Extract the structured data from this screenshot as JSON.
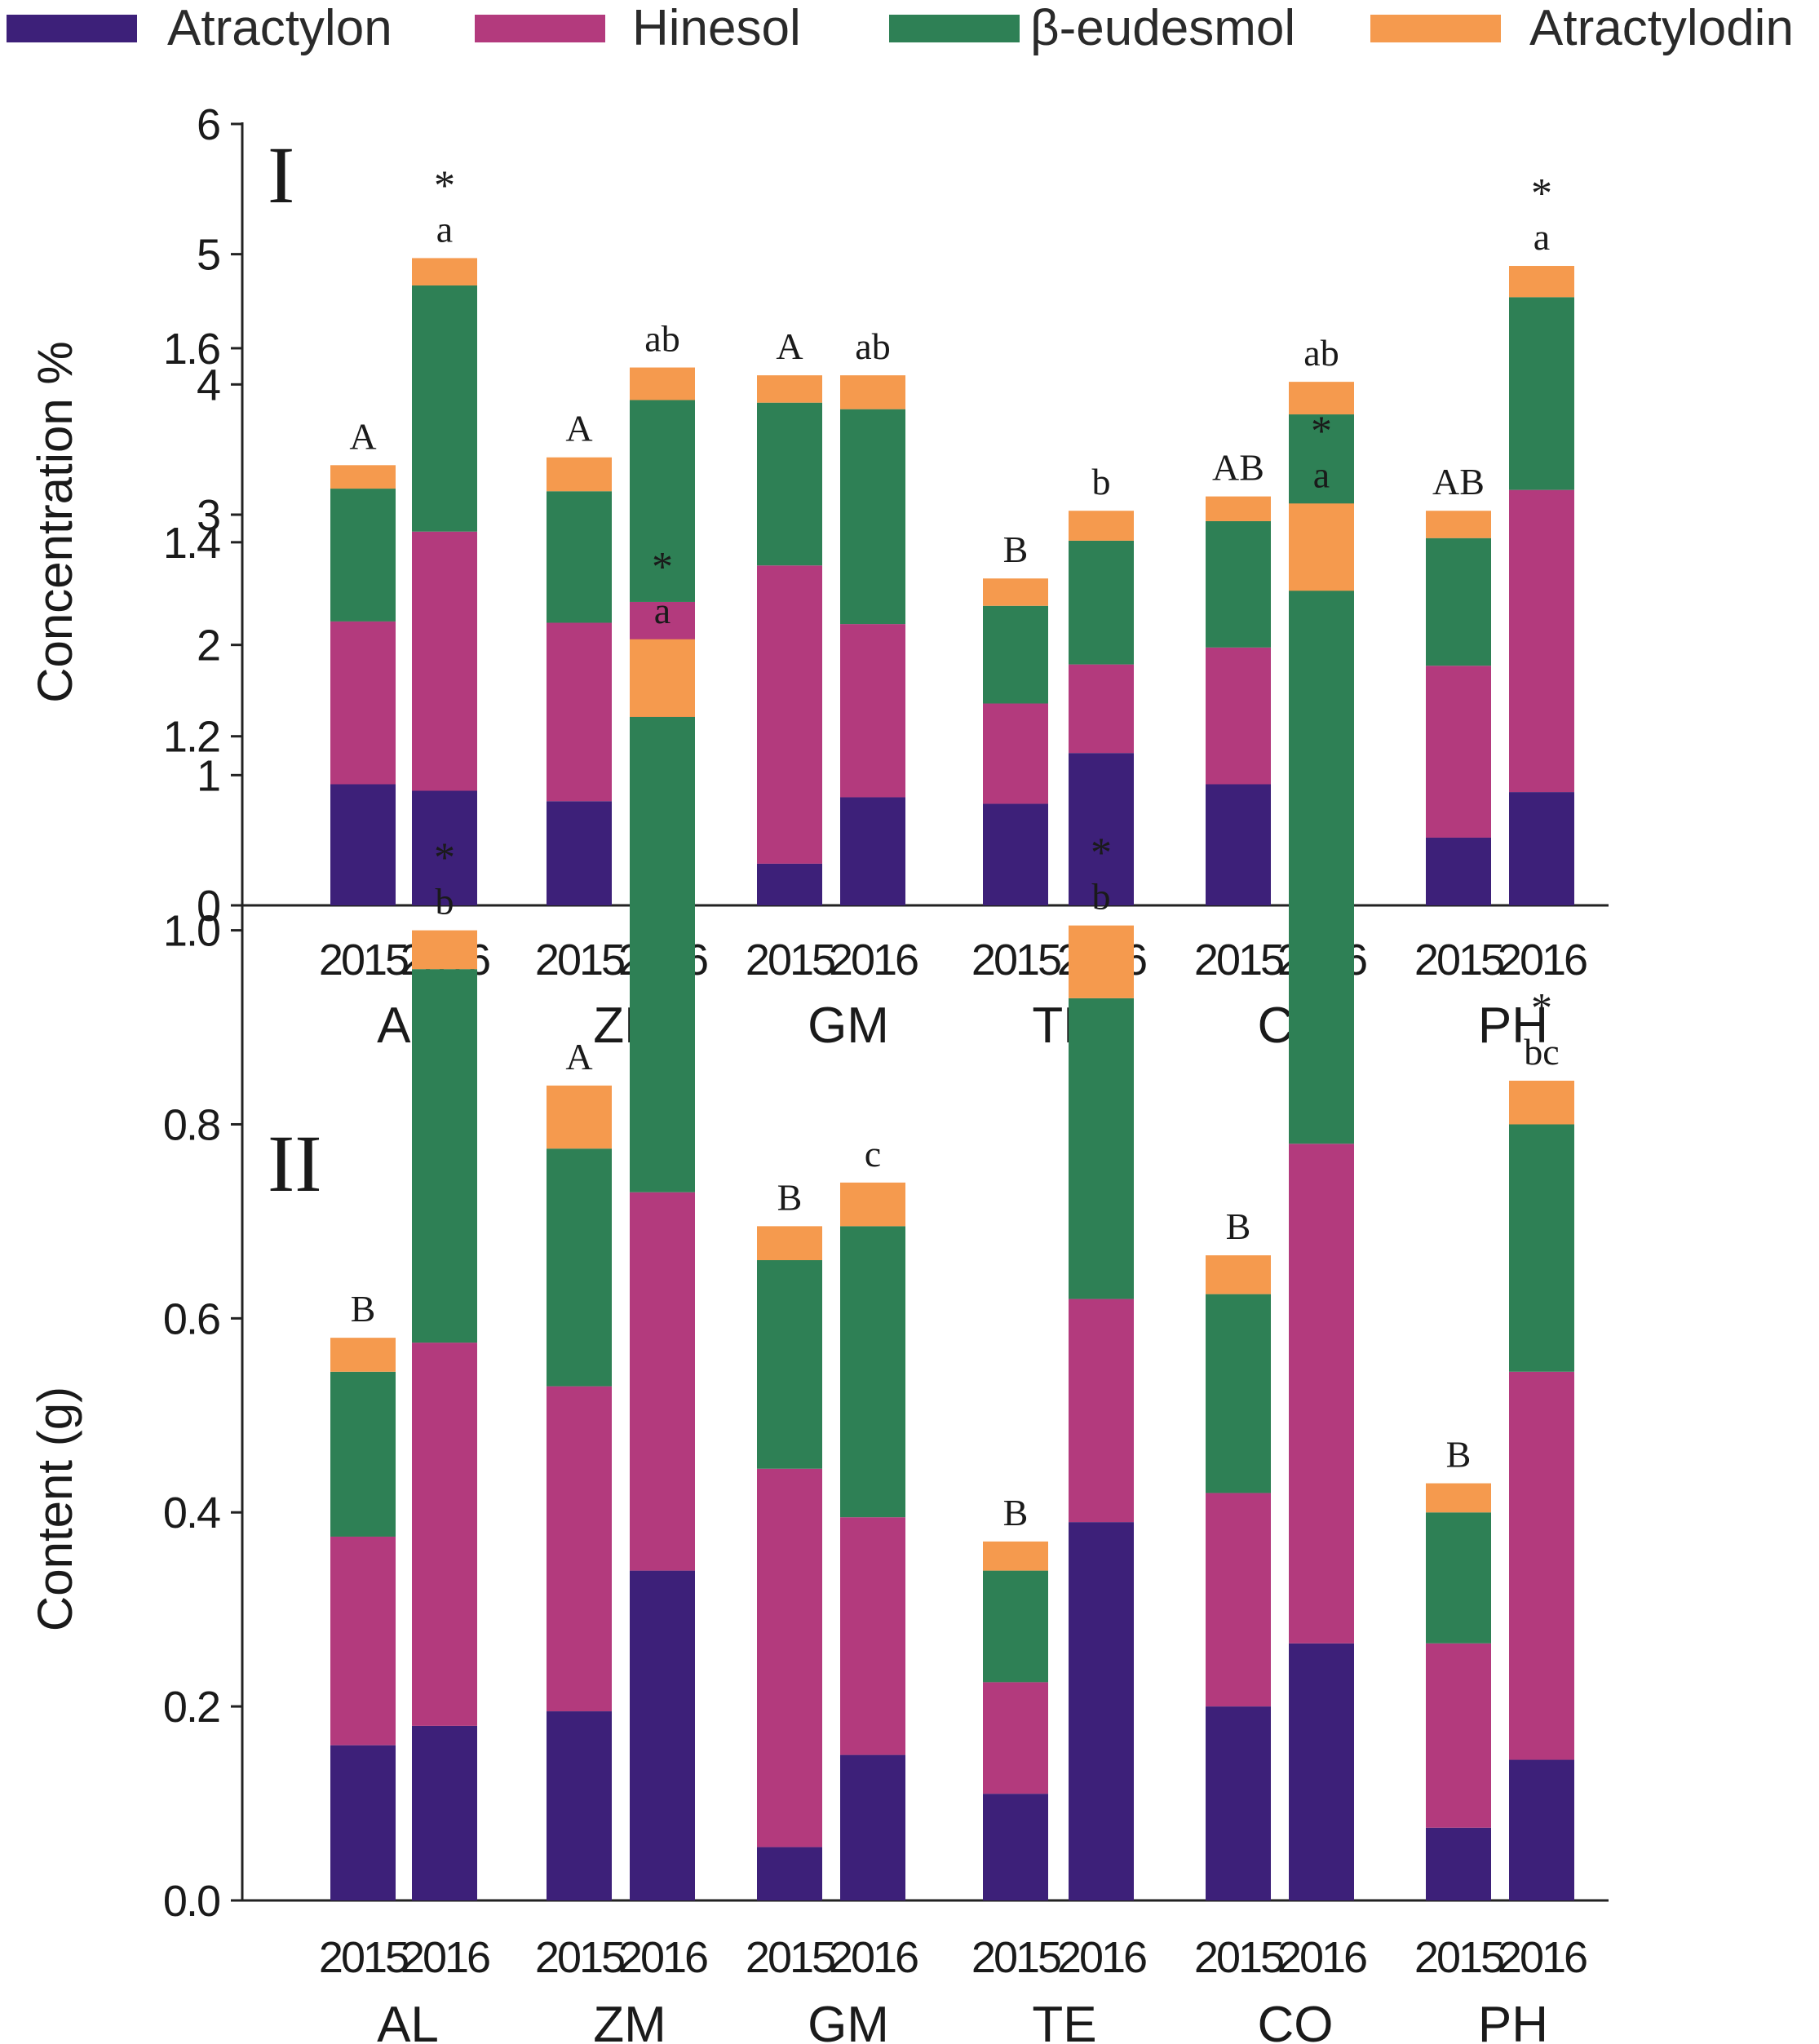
{
  "legend": [
    {
      "name": "Atractylon",
      "color": "#3d2079"
    },
    {
      "name": "Hinesol",
      "color": "#b33a7d"
    },
    {
      "name": "β-eudesmol",
      "color": "#2e8055"
    },
    {
      "name": "Atractylodin",
      "color": "#f59a4e"
    }
  ],
  "chart_data": [
    {
      "type": "bar",
      "stacked": true,
      "panel_label": "I",
      "ylabel": "Concentration %",
      "xlabel": "",
      "ylim": [
        0,
        6
      ],
      "yticks": [
        0,
        1,
        2,
        3,
        4,
        5,
        6
      ],
      "ytick_labels": [
        "0",
        "1",
        "2",
        "3",
        "4",
        "5",
        "6"
      ],
      "groups": [
        "AL",
        "ZM",
        "GM",
        "TE",
        "CO",
        "PH"
      ],
      "years": [
        "2015",
        "2016"
      ],
      "series": [
        {
          "name": "Atractylon",
          "values": [
            0.93,
            0.88,
            0.8,
            1.07,
            0.32,
            0.83,
            0.78,
            1.17,
            0.93,
            0.72,
            0.52,
            0.87
          ]
        },
        {
          "name": "Hinesol",
          "values": [
            1.25,
            1.99,
            1.37,
            1.26,
            2.29,
            1.33,
            0.77,
            0.68,
            1.05,
            1.45,
            1.32,
            2.32
          ]
        },
        {
          "name": "β-eudesmol",
          "values": [
            1.02,
            1.89,
            1.01,
            1.55,
            1.25,
            1.65,
            0.75,
            0.95,
            0.97,
            1.6,
            0.98,
            1.48
          ]
        },
        {
          "name": "Atractylodin",
          "values": [
            0.18,
            0.21,
            0.26,
            0.25,
            0.21,
            0.26,
            0.21,
            0.23,
            0.19,
            0.25,
            0.21,
            0.24
          ]
        }
      ],
      "letters": [
        "A",
        "a",
        "A",
        "ab",
        "A",
        "ab",
        "B",
        "b",
        "AB",
        "ab",
        "AB",
        "a"
      ],
      "stars": [
        "",
        "*",
        "",
        "",
        "",
        "",
        "",
        "",
        "",
        "",
        "",
        "*"
      ]
    },
    {
      "type": "bar",
      "stacked": true,
      "panel_label": "II",
      "ylabel": "Content (g)",
      "xlabel": "",
      "ylim": [
        0,
        1.6
      ],
      "yticks": [
        0,
        0.2,
        0.4,
        0.6,
        0.8,
        1.0,
        1.2,
        1.4,
        1.6
      ],
      "ytick_labels": [
        "0.0",
        "0.2",
        "0.4",
        "0.6",
        "0.8",
        "1.0",
        "1.2",
        "1.4",
        "1.6"
      ],
      "groups": [
        "AL",
        "ZM",
        "GM",
        "TE",
        "CO",
        "PH"
      ],
      "years": [
        "2015",
        "2016"
      ],
      "series": [
        {
          "name": "Atractylon",
          "values": [
            0.16,
            0.18,
            0.195,
            0.34,
            0.055,
            0.15,
            0.11,
            0.39,
            0.2,
            0.265,
            0.075,
            0.145
          ]
        },
        {
          "name": "Hinesol",
          "values": [
            0.215,
            0.395,
            0.335,
            0.39,
            0.39,
            0.245,
            0.115,
            0.23,
            0.22,
            0.515,
            0.19,
            0.4
          ]
        },
        {
          "name": "β-eudesmol",
          "values": [
            0.17,
            0.385,
            0.245,
            0.49,
            0.215,
            0.3,
            0.115,
            0.31,
            0.205,
            0.57,
            0.135,
            0.255
          ]
        },
        {
          "name": "Atractylodin",
          "values": [
            0.035,
            0.04,
            0.065,
            0.08,
            0.035,
            0.045,
            0.03,
            0.075,
            0.04,
            0.09,
            0.03,
            0.045
          ]
        }
      ],
      "letters": [
        "B",
        "b",
        "A",
        "a",
        "B",
        "c",
        "B",
        "b",
        "B",
        "a",
        "B",
        "bc"
      ],
      "stars": [
        "",
        "*",
        "",
        "*",
        "",
        "",
        "",
        "*",
        "",
        "*",
        "",
        "*"
      ]
    }
  ]
}
